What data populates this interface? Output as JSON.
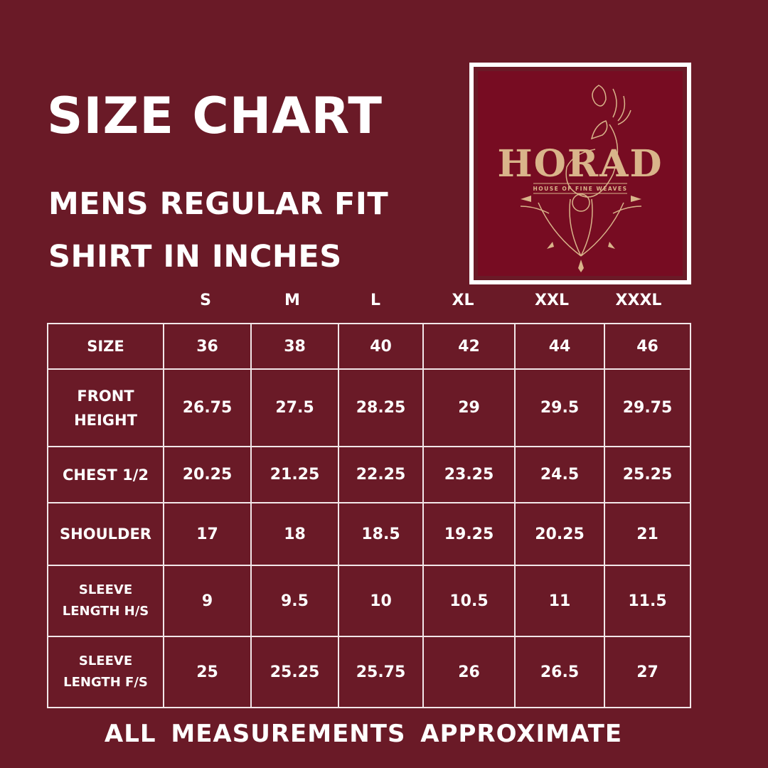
{
  "title": "SIZE CHART",
  "subtitle_line1": "MENS REGULAR FIT",
  "subtitle_line2": "SHIRT IN INCHES",
  "logo": {
    "brand": "HORAD",
    "tagline": "HOUSE OF FINE WEAVES",
    "gold": "#d9b48a",
    "background": "#770c22"
  },
  "colors": {
    "background": "#6a1a27",
    "text": "#ffffff",
    "grid": "#f2e6e8"
  },
  "table": {
    "size_labels": [
      "S",
      "M",
      "L",
      "XL",
      "XXL",
      "XXXL"
    ],
    "rows": [
      {
        "label": [
          "SIZE"
        ],
        "values": [
          "36",
          "38",
          "40",
          "42",
          "44",
          "46"
        ]
      },
      {
        "label": [
          "FRONT",
          "HEIGHT"
        ],
        "values": [
          "26.75",
          "27.5",
          "28.25",
          "29",
          "29.5",
          "29.75"
        ]
      },
      {
        "label": [
          "CHEST 1/2"
        ],
        "values": [
          "20.25",
          "21.25",
          "22.25",
          "23.25",
          "24.5",
          "25.25"
        ]
      },
      {
        "label": [
          "SHOULDER"
        ],
        "values": [
          "17",
          "18",
          "18.5",
          "19.25",
          "20.25",
          "21"
        ]
      },
      {
        "label": [
          "SLEEVE",
          "LENGTH H/S"
        ],
        "values": [
          "9",
          "9.5",
          "10",
          "10.5",
          "11",
          "11.5"
        ]
      },
      {
        "label": [
          "SLEEVE",
          "LENGTH F/S"
        ],
        "values": [
          "25",
          "25.25",
          "25.75",
          "26",
          "26.5",
          "27"
        ]
      }
    ]
  },
  "footer": "ALL  MEASUREMENTS  APPROXIMATE"
}
